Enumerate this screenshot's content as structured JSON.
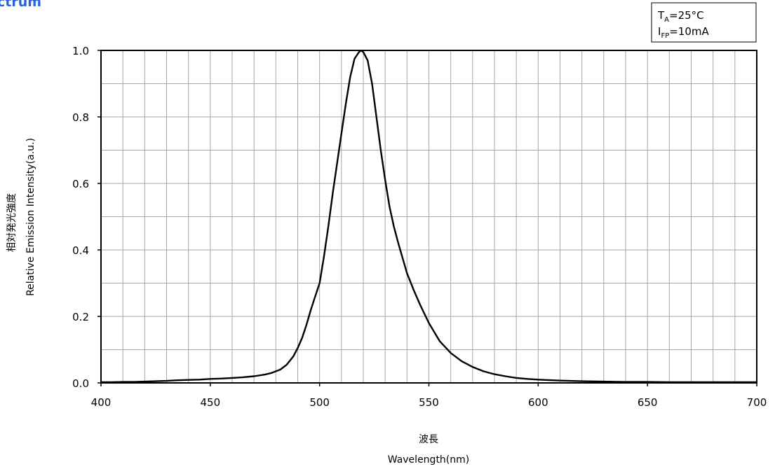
{
  "title_fragment": "ctrum",
  "accent_color": "#2a63d9",
  "chart_data": {
    "type": "line",
    "title": "",
    "xlabel_jp": "波長",
    "xlabel": "Wavelength(nm)",
    "ylabel_jp": "相対発光強度",
    "ylabel": "Relative Emission Intensity(a.u.)",
    "xlim": [
      400,
      700
    ],
    "ylim": [
      0,
      1.0
    ],
    "x_ticks": [
      400,
      450,
      500,
      550,
      600,
      650,
      700
    ],
    "x_tick_labels": [
      "400",
      "450",
      "500",
      "550",
      "600",
      "650",
      "700"
    ],
    "y_ticks": [
      0,
      0.2,
      0.4,
      0.6,
      0.8,
      1.0
    ],
    "y_tick_labels": [
      "0.0",
      "0.2",
      "0.4",
      "0.6",
      "0.8",
      "1.0"
    ],
    "x_minor_step": 10,
    "y_minor_step": 0.1,
    "grid": true,
    "line_color": "#000000",
    "conditions": {
      "ta": {
        "main": "T",
        "sub": "A",
        "rest": "=25°C"
      },
      "ifp": {
        "main": "I",
        "sub": "FP",
        "rest": "=10mA"
      }
    },
    "series": [
      {
        "x": [
          400,
          405,
          410,
          415,
          420,
          425,
          430,
          435,
          440,
          445,
          450,
          455,
          460,
          465,
          470,
          475,
          478,
          480,
          482,
          485,
          488,
          490,
          492,
          494,
          496,
          498,
          500,
          502,
          504,
          506,
          508,
          510,
          512,
          514,
          516,
          518,
          519,
          520,
          522,
          524,
          526,
          528,
          530,
          532,
          534,
          536,
          538,
          540,
          543,
          546,
          550,
          555,
          560,
          565,
          570,
          575,
          580,
          585,
          590,
          595,
          600,
          610,
          620,
          630,
          640,
          650,
          660,
          670,
          680,
          690,
          700
        ],
        "y": [
          0.002,
          0.002,
          0.003,
          0.003,
          0.004,
          0.005,
          0.006,
          0.008,
          0.009,
          0.01,
          0.012,
          0.013,
          0.015,
          0.017,
          0.02,
          0.025,
          0.03,
          0.035,
          0.04,
          0.055,
          0.08,
          0.105,
          0.135,
          0.175,
          0.22,
          0.26,
          0.3,
          0.38,
          0.47,
          0.57,
          0.66,
          0.75,
          0.84,
          0.92,
          0.975,
          0.995,
          1.0,
          0.995,
          0.97,
          0.9,
          0.8,
          0.7,
          0.61,
          0.53,
          0.47,
          0.42,
          0.375,
          0.33,
          0.28,
          0.235,
          0.18,
          0.125,
          0.09,
          0.065,
          0.048,
          0.035,
          0.026,
          0.02,
          0.015,
          0.012,
          0.01,
          0.007,
          0.005,
          0.004,
          0.003,
          0.003,
          0.002,
          0.002,
          0.002,
          0.002,
          0.002
        ]
      }
    ]
  }
}
